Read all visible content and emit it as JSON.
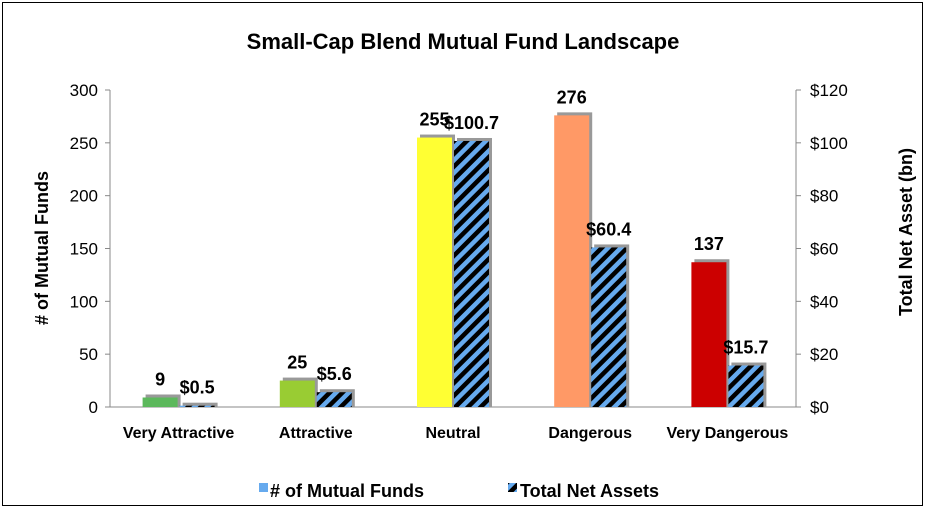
{
  "chart_data": {
    "type": "bar",
    "title": "Small-Cap Blend Mutual Fund Landscape",
    "categories": [
      "Very Attractive",
      "Attractive",
      "Neutral",
      "Dangerous",
      "Very Dangerous"
    ],
    "ylabel": "# of Mutual Funds",
    "y2label": "Total Net Asset (bn)",
    "ylim": [
      0,
      300
    ],
    "y2lim": [
      0,
      120
    ],
    "yticks": [
      "0",
      "50",
      "100",
      "150",
      "200",
      "250",
      "300"
    ],
    "y2ticks": [
      "$0",
      "$20",
      "$40",
      "$60",
      "$80",
      "$100",
      "$120"
    ],
    "series": [
      {
        "name": "# of Mutual Funds",
        "axis": "left",
        "values": [
          9,
          25,
          255,
          276,
          137
        ],
        "labels": [
          "9",
          "25",
          "255",
          "276",
          "137"
        ],
        "colors": [
          "#5cb85c",
          "#99cc33",
          "#ffff33",
          "#ff9966",
          "#cc0000"
        ]
      },
      {
        "name": "Total Net Assets",
        "axis": "right",
        "values": [
          0.5,
          5.6,
          100.7,
          60.4,
          15.7
        ],
        "labels": [
          "$0.5",
          "$5.6",
          "$100.7",
          "$60.4",
          "$15.7"
        ],
        "pattern": "diagonal stripes",
        "colors": [
          "#66aaee",
          "#000000"
        ]
      }
    ],
    "legend_position": "bottom",
    "grid": false
  }
}
